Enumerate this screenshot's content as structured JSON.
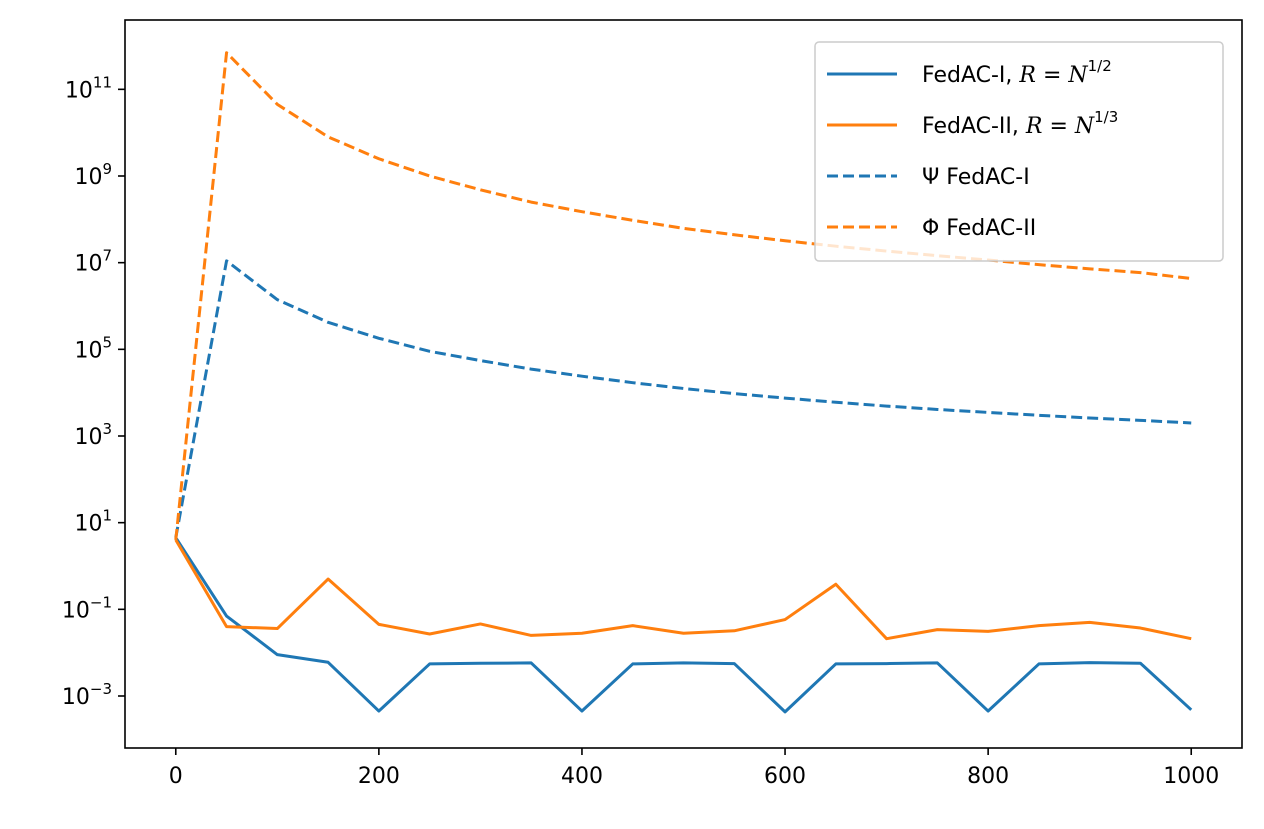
{
  "chart_data": {
    "type": "line",
    "title": "",
    "xlabel": "",
    "ylabel": "",
    "x": [
      0,
      50,
      100,
      150,
      200,
      250,
      300,
      350,
      400,
      450,
      500,
      550,
      600,
      650,
      700,
      750,
      800,
      850,
      900,
      950,
      1000
    ],
    "xlim": [
      -50,
      1050
    ],
    "ylim_log10": [
      -4.2,
      12.6
    ],
    "yscale": "log",
    "grid": false,
    "legend_position": "top-right",
    "x_ticks": [
      0,
      200,
      400,
      600,
      800,
      1000
    ],
    "x_tick_labels": [
      "0",
      "200",
      "400",
      "600",
      "800",
      "1000"
    ],
    "y_tick_exponents": [
      -3,
      -1,
      1,
      3,
      5,
      7,
      9,
      11
    ],
    "y_tick_labels": [
      {
        "base": "10",
        "exp": "−3"
      },
      {
        "base": "10",
        "exp": "−1"
      },
      {
        "base": "10",
        "exp": "1"
      },
      {
        "base": "10",
        "exp": "3"
      },
      {
        "base": "10",
        "exp": "5"
      },
      {
        "base": "10",
        "exp": "7"
      },
      {
        "base": "10",
        "exp": "9"
      },
      {
        "base": "10",
        "exp": "11"
      }
    ],
    "series": [
      {
        "name": "FedAC-I, R = N^{1/2}",
        "color": "#1f77b4",
        "style": "solid",
        "values": [
          4.5,
          0.07,
          0.009,
          0.006,
          0.00045,
          0.0055,
          0.0057,
          0.0058,
          0.00045,
          0.0055,
          0.0058,
          0.0056,
          0.00043,
          0.0055,
          0.0056,
          0.0058,
          0.00045,
          0.0055,
          0.0059,
          0.0057,
          0.00048
        ]
      },
      {
        "name": "FedAC-II, R = N^{1/3}",
        "color": "#ff7f0e",
        "style": "solid",
        "values": [
          4,
          0.04,
          0.036,
          0.5,
          0.045,
          0.027,
          0.046,
          0.025,
          0.028,
          0.042,
          0.028,
          0.032,
          0.058,
          0.38,
          0.021,
          0.034,
          0.031,
          0.042,
          0.05,
          0.037,
          0.021
        ]
      },
      {
        "name": "Ψ  FedAC-I",
        "color": "#1f77b4",
        "style": "dashed",
        "values": [
          4.5,
          11000000,
          1400000,
          420000,
          180000,
          90000,
          55000,
          35000,
          24000,
          17000,
          12500,
          9500,
          7500,
          6000,
          4900,
          4100,
          3500,
          3000,
          2600,
          2300,
          2000
        ]
      },
      {
        "name": "Φ  FedAC-II",
        "color": "#ff7f0e",
        "style": "dashed",
        "values": [
          4,
          700000000000,
          45000000000,
          8000000000,
          2500000000,
          1000000000,
          480000000,
          250000000,
          150000000,
          95000000,
          62000000,
          44000000,
          32000000,
          24000000,
          18500000,
          14500000,
          11500000,
          9000000,
          7200000,
          5900000,
          4300000
        ]
      }
    ],
    "legend": [
      {
        "text": "FedAC-I, ",
        "math_var": "R",
        "math_eq": " = ",
        "math_base": "N",
        "math_exp": "1/2"
      },
      {
        "text": "FedAC-II, ",
        "math_var": "R",
        "math_eq": " = ",
        "math_base": "N",
        "math_exp": "1/3"
      },
      {
        "text": "Ψ  FedAC-I"
      },
      {
        "text": "Φ  FedAC-II"
      }
    ]
  }
}
